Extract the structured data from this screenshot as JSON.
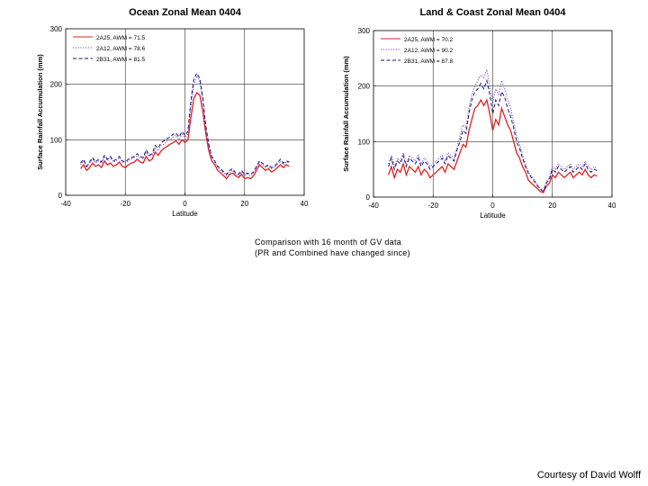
{
  "caption": {
    "line1": "Comparison with 16 month of GV data",
    "line2": "(PR and Combined have changed since)"
  },
  "credit": "Courtesy of David Wolff",
  "colors": {
    "2A25": "#e02020",
    "2A12": "#8040c0",
    "2B31": "#101080"
  },
  "chart_data": [
    {
      "type": "line",
      "title": "Ocean Zonal Mean 0404",
      "xlabel": "Latitude",
      "ylabel": "Surface Rainfall Accumulation (mm)",
      "xlim": [
        -40,
        40
      ],
      "ylim": [
        0,
        300
      ],
      "xticks": [
        -40,
        -20,
        0,
        20,
        40
      ],
      "yticks": [
        0,
        100,
        200,
        300
      ],
      "grid": true,
      "legend_position": "top-left",
      "x": [
        -35,
        -34,
        -33,
        -32,
        -31,
        -30,
        -29,
        -28,
        -27,
        -26,
        -25,
        -24,
        -23,
        -22,
        -21,
        -20,
        -19,
        -18,
        -17,
        -16,
        -15,
        -14,
        -13,
        -12,
        -11,
        -10,
        -9,
        -8,
        -7,
        -6,
        -5,
        -4,
        -3,
        -2,
        -1,
        0,
        1,
        2,
        3,
        4,
        5,
        6,
        7,
        8,
        9,
        10,
        11,
        12,
        13,
        14,
        15,
        16,
        17,
        18,
        19,
        20,
        21,
        22,
        23,
        24,
        25,
        26,
        27,
        28,
        29,
        30,
        31,
        32,
        33,
        34,
        35
      ],
      "series": [
        {
          "name": "2A25, AWM = 71.5",
          "style": "solid",
          "values": [
            48,
            55,
            45,
            50,
            58,
            52,
            55,
            50,
            62,
            55,
            58,
            52,
            55,
            60,
            52,
            50,
            55,
            58,
            60,
            65,
            60,
            58,
            70,
            62,
            65,
            78,
            72,
            80,
            85,
            88,
            92,
            95,
            98,
            92,
            100,
            95,
            100,
            140,
            175,
            185,
            180,
            150,
            110,
            80,
            62,
            55,
            45,
            40,
            35,
            30,
            38,
            40,
            35,
            32,
            38,
            30,
            32,
            30,
            35,
            45,
            55,
            50,
            45,
            48,
            42,
            45,
            50,
            55,
            50,
            55,
            52
          ]
        },
        {
          "name": "2A12, AWM = 78.6",
          "style": "dotted",
          "values": [
            55,
            62,
            50,
            58,
            65,
            58,
            62,
            58,
            70,
            62,
            68,
            60,
            62,
            68,
            60,
            58,
            62,
            65,
            68,
            72,
            68,
            65,
            78,
            70,
            72,
            85,
            80,
            90,
            92,
            98,
            100,
            105,
            108,
            100,
            110,
            105,
            110,
            160,
            200,
            215,
            205,
            170,
            120,
            88,
            68,
            60,
            50,
            45,
            40,
            35,
            42,
            45,
            38,
            35,
            42,
            35,
            38,
            35,
            40,
            50,
            60,
            55,
            50,
            52,
            48,
            50,
            55,
            62,
            55,
            60,
            58
          ]
        },
        {
          "name": "2B31, AWM = 81.5",
          "style": "dashed",
          "values": [
            58,
            65,
            52,
            60,
            68,
            60,
            65,
            60,
            72,
            65,
            70,
            62,
            65,
            70,
            62,
            60,
            65,
            68,
            70,
            75,
            70,
            68,
            82,
            72,
            75,
            90,
            85,
            95,
            98,
            102,
            105,
            110,
            112,
            105,
            115,
            108,
            115,
            170,
            210,
            220,
            210,
            175,
            125,
            92,
            70,
            62,
            52,
            48,
            42,
            38,
            45,
            48,
            40,
            38,
            45,
            38,
            40,
            38,
            42,
            52,
            62,
            58,
            52,
            55,
            50,
            52,
            58,
            65,
            58,
            62,
            60
          ]
        }
      ]
    },
    {
      "type": "line",
      "title": "Land & Coast Zonal Mean 0404",
      "xlabel": "Latitude",
      "ylabel": "Surface Rainfall Accumulation (mm)",
      "xlim": [
        -40,
        40
      ],
      "ylim": [
        0,
        300
      ],
      "xticks": [
        -40,
        -20,
        0,
        20,
        40
      ],
      "yticks": [
        0,
        100,
        200,
        300
      ],
      "grid": true,
      "legend_position": "top-left",
      "x": [
        -35,
        -34,
        -33,
        -32,
        -31,
        -30,
        -29,
        -28,
        -27,
        -26,
        -25,
        -24,
        -23,
        -22,
        -21,
        -20,
        -19,
        -18,
        -17,
        -16,
        -15,
        -14,
        -13,
        -12,
        -11,
        -10,
        -9,
        -8,
        -7,
        -6,
        -5,
        -4,
        -3,
        -2,
        -1,
        0,
        1,
        2,
        3,
        4,
        5,
        6,
        7,
        8,
        9,
        10,
        11,
        12,
        13,
        14,
        15,
        16,
        17,
        18,
        19,
        20,
        21,
        22,
        23,
        24,
        25,
        26,
        27,
        28,
        29,
        30,
        31,
        32,
        33,
        34,
        35
      ],
      "series": [
        {
          "name": "2A25, AWM = 70.2",
          "style": "solid",
          "values": [
            40,
            55,
            35,
            50,
            45,
            60,
            40,
            55,
            50,
            45,
            55,
            40,
            50,
            45,
            35,
            40,
            45,
            50,
            55,
            45,
            60,
            55,
            50,
            65,
            80,
            95,
            90,
            120,
            140,
            160,
            165,
            175,
            165,
            175,
            150,
            120,
            140,
            130,
            160,
            145,
            130,
            120,
            100,
            80,
            70,
            55,
            45,
            30,
            25,
            20,
            15,
            10,
            8,
            20,
            25,
            40,
            35,
            45,
            40,
            35,
            40,
            45,
            35,
            40,
            45,
            40,
            50,
            40,
            35,
            40,
            38
          ]
        },
        {
          "name": "2A12, AWM = 90.2",
          "style": "dotted",
          "values": [
            60,
            75,
            55,
            70,
            65,
            80,
            60,
            75,
            70,
            65,
            75,
            60,
            70,
            65,
            55,
            60,
            65,
            70,
            75,
            65,
            80,
            75,
            70,
            90,
            110,
            130,
            125,
            160,
            185,
            200,
            210,
            220,
            215,
            230,
            200,
            170,
            195,
            185,
            210,
            195,
            175,
            160,
            135,
            110,
            95,
            75,
            60,
            45,
            38,
            30,
            22,
            15,
            12,
            28,
            35,
            55,
            50,
            60,
            55,
            50,
            55,
            60,
            50,
            55,
            60,
            55,
            65,
            55,
            50,
            55,
            52
          ]
        },
        {
          "name": "2B31, AWM = 87.8",
          "style": "dashed",
          "values": [
            55,
            70,
            50,
            65,
            60,
            75,
            55,
            70,
            65,
            60,
            70,
            55,
            65,
            60,
            50,
            55,
            60,
            65,
            70,
            60,
            75,
            70,
            65,
            85,
            100,
            120,
            115,
            150,
            175,
            190,
            195,
            205,
            195,
            210,
            185,
            150,
            175,
            165,
            190,
            180,
            160,
            145,
            125,
            100,
            88,
            70,
            55,
            42,
            35,
            28,
            20,
            14,
            10,
            25,
            32,
            50,
            45,
            55,
            50,
            45,
            50,
            55,
            45,
            50,
            55,
            50,
            60,
            50,
            45,
            50,
            48
          ]
        }
      ]
    }
  ]
}
